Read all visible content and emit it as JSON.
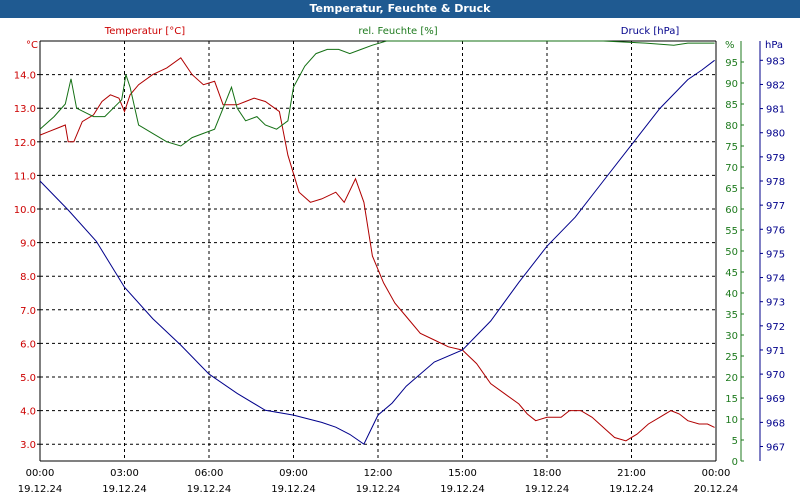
{
  "window": {
    "title": "Temperatur, Feuchte & Druck"
  },
  "chart_data": {
    "type": "line",
    "title": "Temperatur, Feuchte & Druck",
    "grid": true,
    "colors": {
      "temperature": "#b00000",
      "humidity": "#147014",
      "pressure": "#00008b",
      "background": "#ffffff",
      "titlebar": "#1f5a91"
    },
    "x_axis": {
      "ticks": [
        {
          "time": "00:00",
          "date": "19.12.24"
        },
        {
          "time": "03:00",
          "date": "19.12.24"
        },
        {
          "time": "06:00",
          "date": "19.12.24"
        },
        {
          "time": "09:00",
          "date": "19.12.24"
        },
        {
          "time": "12:00",
          "date": "19.12.24"
        },
        {
          "time": "15:00",
          "date": "19.12.24"
        },
        {
          "time": "18:00",
          "date": "19.12.24"
        },
        {
          "time": "21:00",
          "date": "19.12.24"
        },
        {
          "time": "00:00",
          "date": "20.12.24"
        }
      ],
      "range_hours": [
        0,
        24
      ]
    },
    "axes": {
      "left": {
        "unit": "°C",
        "range": [
          2.5,
          15
        ],
        "ticks": [
          "3.0",
          "4.0",
          "5.0",
          "6.0",
          "7.0",
          "8.0",
          "9.0",
          "10.0",
          "11.0",
          "12.0",
          "13.0",
          "14.0"
        ]
      },
      "middle": {
        "unit": "%",
        "range": [
          0,
          100
        ],
        "ticks": [
          "0",
          "5",
          "10",
          "15",
          "20",
          "25",
          "30",
          "35",
          "40",
          "45",
          "50",
          "55",
          "60",
          "65",
          "70",
          "75",
          "80",
          "85",
          "90",
          "95"
        ]
      },
      "right": {
        "unit": "hPa",
        "range": [
          966.4,
          983.8
        ],
        "ticks": [
          "967",
          "968",
          "969",
          "970",
          "971",
          "972",
          "973",
          "974",
          "975",
          "976",
          "977",
          "978",
          "979",
          "980",
          "981",
          "982",
          "983"
        ]
      }
    },
    "series": [
      {
        "name": "Temperatur [°C]",
        "axis": "left",
        "color": "#b00000",
        "points": [
          [
            0,
            12.2
          ],
          [
            0.3,
            12.3
          ],
          [
            0.6,
            12.4
          ],
          [
            0.9,
            12.5
          ],
          [
            1.0,
            12.0
          ],
          [
            1.2,
            12.0
          ],
          [
            1.5,
            12.6
          ],
          [
            1.9,
            12.8
          ],
          [
            2.2,
            13.2
          ],
          [
            2.5,
            13.4
          ],
          [
            2.8,
            13.3
          ],
          [
            3.0,
            12.9
          ],
          [
            3.2,
            13.4
          ],
          [
            3.5,
            13.7
          ],
          [
            4.0,
            14.0
          ],
          [
            4.5,
            14.2
          ],
          [
            5.0,
            14.5
          ],
          [
            5.4,
            14.0
          ],
          [
            5.8,
            13.7
          ],
          [
            6.2,
            13.8
          ],
          [
            6.5,
            13.1
          ],
          [
            7.0,
            13.1
          ],
          [
            7.3,
            13.2
          ],
          [
            7.6,
            13.3
          ],
          [
            8.0,
            13.2
          ],
          [
            8.5,
            12.9
          ],
          [
            8.8,
            11.6
          ],
          [
            9.2,
            10.5
          ],
          [
            9.6,
            10.2
          ],
          [
            10.0,
            10.3
          ],
          [
            10.5,
            10.5
          ],
          [
            10.8,
            10.2
          ],
          [
            11.2,
            10.9
          ],
          [
            11.5,
            10.2
          ],
          [
            11.8,
            8.6
          ],
          [
            12.2,
            7.8
          ],
          [
            12.6,
            7.2
          ],
          [
            13.0,
            6.8
          ],
          [
            13.5,
            6.3
          ],
          [
            14.0,
            6.1
          ],
          [
            14.5,
            5.9
          ],
          [
            15.0,
            5.8
          ],
          [
            15.5,
            5.4
          ],
          [
            16.0,
            4.8
          ],
          [
            16.5,
            4.5
          ],
          [
            17.0,
            4.2
          ],
          [
            17.3,
            3.9
          ],
          [
            17.6,
            3.7
          ],
          [
            18.0,
            3.8
          ],
          [
            18.5,
            3.8
          ],
          [
            18.8,
            4.0
          ],
          [
            19.2,
            4.0
          ],
          [
            19.6,
            3.8
          ],
          [
            20.0,
            3.5
          ],
          [
            20.4,
            3.2
          ],
          [
            20.8,
            3.1
          ],
          [
            21.2,
            3.3
          ],
          [
            21.6,
            3.6
          ],
          [
            22.0,
            3.8
          ],
          [
            22.4,
            4.0
          ],
          [
            22.7,
            3.9
          ],
          [
            23.0,
            3.7
          ],
          [
            23.4,
            3.6
          ],
          [
            23.7,
            3.6
          ],
          [
            23.95,
            3.5
          ]
        ]
      },
      {
        "name": "rel. Feuchte [%]",
        "axis": "middle",
        "color": "#147014",
        "points": [
          [
            0,
            79
          ],
          [
            0.5,
            82
          ],
          [
            0.9,
            85
          ],
          [
            1.1,
            91
          ],
          [
            1.3,
            84
          ],
          [
            1.6,
            83
          ],
          [
            1.9,
            82
          ],
          [
            2.3,
            82
          ],
          [
            2.6,
            84
          ],
          [
            2.9,
            86
          ],
          [
            3.05,
            92
          ],
          [
            3.2,
            89
          ],
          [
            3.5,
            80
          ],
          [
            4.0,
            78
          ],
          [
            4.5,
            76
          ],
          [
            5.0,
            75
          ],
          [
            5.4,
            77
          ],
          [
            5.8,
            78
          ],
          [
            6.2,
            79
          ],
          [
            6.5,
            84
          ],
          [
            6.8,
            89
          ],
          [
            7.0,
            84
          ],
          [
            7.3,
            81
          ],
          [
            7.7,
            82
          ],
          [
            8.0,
            80
          ],
          [
            8.4,
            79
          ],
          [
            8.8,
            81
          ],
          [
            9.0,
            89
          ],
          [
            9.4,
            94
          ],
          [
            9.8,
            97
          ],
          [
            10.2,
            98
          ],
          [
            10.6,
            98
          ],
          [
            11.0,
            97
          ],
          [
            11.4,
            98
          ],
          [
            11.8,
            99
          ],
          [
            12.3,
            100
          ],
          [
            13.0,
            100
          ],
          [
            15,
            100
          ],
          [
            18,
            100
          ],
          [
            20,
            100
          ],
          [
            21.5,
            99.5
          ],
          [
            22.5,
            99
          ],
          [
            23.0,
            99.5
          ],
          [
            23.5,
            99.5
          ],
          [
            23.95,
            99.5
          ]
        ]
      },
      {
        "name": "Druck [hPa]",
        "axis": "right",
        "color": "#00008b",
        "points": [
          [
            0,
            978.0
          ],
          [
            1.0,
            976.8
          ],
          [
            2.0,
            975.5
          ],
          [
            3.0,
            973.6
          ],
          [
            4.0,
            972.3
          ],
          [
            5.0,
            971.2
          ],
          [
            6.0,
            970.0
          ],
          [
            7.0,
            969.2
          ],
          [
            8.0,
            968.5
          ],
          [
            9.0,
            968.3
          ],
          [
            10.0,
            968.0
          ],
          [
            10.5,
            967.8
          ],
          [
            11.0,
            967.5
          ],
          [
            11.5,
            967.1
          ],
          [
            12.0,
            968.3
          ],
          [
            12.5,
            968.8
          ],
          [
            13.0,
            969.5
          ],
          [
            14.0,
            970.5
          ],
          [
            15.0,
            971.0
          ],
          [
            16.0,
            972.2
          ],
          [
            17.0,
            973.8
          ],
          [
            18.0,
            975.3
          ],
          [
            19.0,
            976.5
          ],
          [
            20.0,
            978.0
          ],
          [
            21.0,
            979.5
          ],
          [
            22.0,
            981.0
          ],
          [
            23.0,
            982.2
          ],
          [
            23.5,
            982.6
          ],
          [
            23.95,
            983.0
          ]
        ]
      }
    ]
  }
}
